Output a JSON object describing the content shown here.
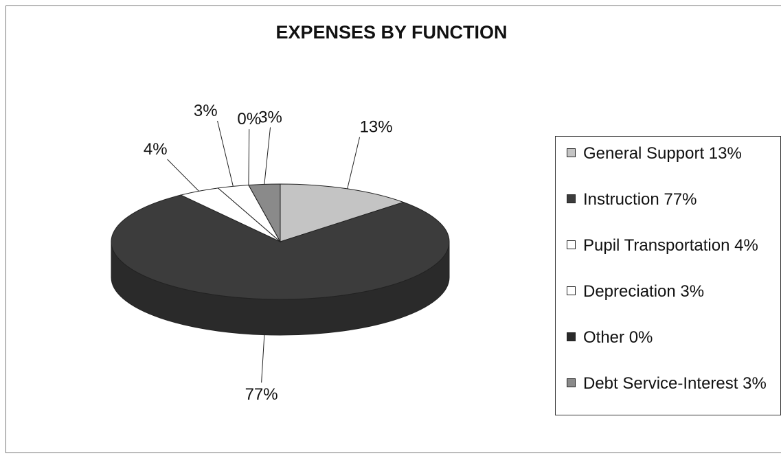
{
  "chart_data": {
    "type": "pie",
    "title": "EXPENSES BY FUNCTION",
    "categories": [
      "General Support 13%",
      "Instruction 77%",
      "Pupil Transportation 4%",
      "Depreciation 3%",
      "Other 0%",
      "Debt Service-Interest 3%"
    ],
    "values": [
      13,
      77,
      4,
      3,
      0,
      3
    ],
    "value_labels": [
      "13%",
      "77%",
      "4%",
      "3%",
      "0%",
      "3%"
    ],
    "colors": [
      "#c4c4c4",
      "#3c3c3c",
      "#ffffff",
      "#ffffff",
      "#2a2a2a",
      "#8a8a8a"
    ],
    "legend": "right"
  }
}
